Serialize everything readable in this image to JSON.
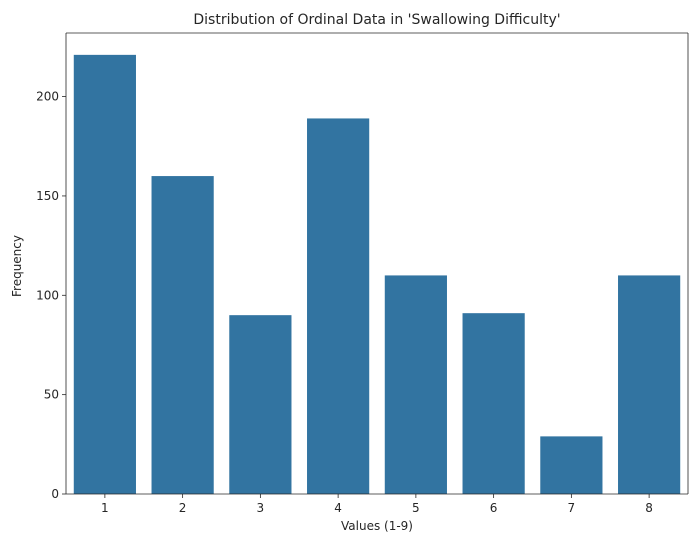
{
  "chart_data": {
    "type": "bar",
    "title": "Distribution of Ordinal Data in 'Swallowing Difficulty'",
    "xlabel": "Values (1-9)",
    "ylabel": "Frequency",
    "categories": [
      "1",
      "2",
      "3",
      "4",
      "5",
      "6",
      "7",
      "8"
    ],
    "values": [
      221,
      160,
      90,
      189,
      110,
      91,
      29,
      110
    ],
    "ylim": [
      0,
      232
    ],
    "yticks": [
      0,
      50,
      100,
      150,
      200
    ],
    "bar_color": "#3274a1",
    "grid": false,
    "legend": "none"
  }
}
